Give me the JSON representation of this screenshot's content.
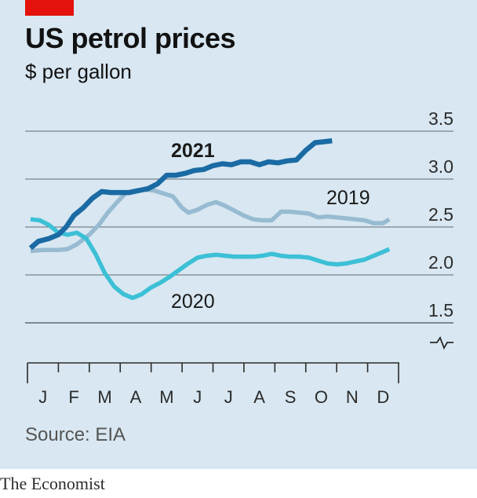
{
  "header": {
    "title": "US petrol prices",
    "subtitle": "$ per gallon"
  },
  "footer": {
    "source": "Source: EIA",
    "brand": "The Economist"
  },
  "colors": {
    "accent": "#e3120b",
    "bg": "#d8e7f1",
    "s2021": "#1a6aa3",
    "s2019": "#97bbd1",
    "s2020": "#3cc0d6"
  },
  "chart_data": {
    "type": "line",
    "title": "US petrol prices",
    "subtitle": "$ per gallon",
    "y_axis": {
      "position": "right",
      "ticks": [
        "3.5",
        "3.0",
        "2.5",
        "2.0",
        "1.5"
      ],
      "ylim": [
        1.5,
        3.5
      ],
      "broken": true
    },
    "x_axis": {
      "ticks": [
        "J",
        "F",
        "M",
        "A",
        "M",
        "J",
        "J",
        "A",
        "S",
        "O",
        "N",
        "D"
      ],
      "xlim": [
        0,
        12
      ]
    },
    "grid": true,
    "series": [
      {
        "name": "2021",
        "bold": true,
        "points": [
          [
            0.1,
            2.28
          ],
          [
            0.35,
            2.35
          ],
          [
            0.7,
            2.38
          ],
          [
            1.0,
            2.42
          ],
          [
            1.25,
            2.5
          ],
          [
            1.5,
            2.62
          ],
          [
            1.8,
            2.7
          ],
          [
            2.1,
            2.8
          ],
          [
            2.4,
            2.87
          ],
          [
            2.7,
            2.86
          ],
          [
            3.0,
            2.86
          ],
          [
            3.3,
            2.86
          ],
          [
            3.6,
            2.88
          ],
          [
            3.9,
            2.9
          ],
          [
            4.2,
            2.95
          ],
          [
            4.5,
            3.04
          ],
          [
            4.8,
            3.04
          ],
          [
            5.1,
            3.06
          ],
          [
            5.4,
            3.09
          ],
          [
            5.7,
            3.1
          ],
          [
            6.0,
            3.14
          ],
          [
            6.3,
            3.16
          ],
          [
            6.6,
            3.15
          ],
          [
            6.9,
            3.18
          ],
          [
            7.2,
            3.18
          ],
          [
            7.5,
            3.15
          ],
          [
            7.8,
            3.18
          ],
          [
            8.1,
            3.17
          ],
          [
            8.4,
            3.19
          ],
          [
            8.7,
            3.2
          ],
          [
            9.0,
            3.3
          ],
          [
            9.3,
            3.38
          ],
          [
            9.6,
            3.39
          ],
          [
            9.85,
            3.4
          ]
        ]
      },
      {
        "name": "2019",
        "points": [
          [
            0.1,
            2.25
          ],
          [
            0.5,
            2.26
          ],
          [
            1.0,
            2.26
          ],
          [
            1.3,
            2.27
          ],
          [
            1.6,
            2.32
          ],
          [
            2.0,
            2.42
          ],
          [
            2.3,
            2.52
          ],
          [
            2.6,
            2.65
          ],
          [
            2.9,
            2.76
          ],
          [
            3.2,
            2.86
          ],
          [
            3.5,
            2.88
          ],
          [
            3.8,
            2.89
          ],
          [
            4.1,
            2.88
          ],
          [
            4.4,
            2.85
          ],
          [
            4.7,
            2.82
          ],
          [
            5.0,
            2.7
          ],
          [
            5.2,
            2.65
          ],
          [
            5.5,
            2.68
          ],
          [
            5.8,
            2.73
          ],
          [
            6.1,
            2.76
          ],
          [
            6.4,
            2.72
          ],
          [
            6.7,
            2.67
          ],
          [
            7.0,
            2.62
          ],
          [
            7.3,
            2.58
          ],
          [
            7.6,
            2.57
          ],
          [
            7.9,
            2.57
          ],
          [
            8.2,
            2.66
          ],
          [
            8.5,
            2.66
          ],
          [
            8.8,
            2.65
          ],
          [
            9.1,
            2.64
          ],
          [
            9.4,
            2.6
          ],
          [
            9.7,
            2.61
          ],
          [
            10.0,
            2.6
          ],
          [
            10.3,
            2.59
          ],
          [
            10.6,
            2.58
          ],
          [
            10.9,
            2.57
          ],
          [
            11.2,
            2.54
          ],
          [
            11.5,
            2.54
          ],
          [
            11.7,
            2.58
          ]
        ]
      },
      {
        "name": "2020",
        "points": [
          [
            0.1,
            2.58
          ],
          [
            0.4,
            2.57
          ],
          [
            0.7,
            2.52
          ],
          [
            1.0,
            2.44
          ],
          [
            1.3,
            2.42
          ],
          [
            1.6,
            2.44
          ],
          [
            1.9,
            2.38
          ],
          [
            2.2,
            2.22
          ],
          [
            2.5,
            2.02
          ],
          [
            2.8,
            1.88
          ],
          [
            3.1,
            1.8
          ],
          [
            3.4,
            1.76
          ],
          [
            3.7,
            1.8
          ],
          [
            4.0,
            1.87
          ],
          [
            4.3,
            1.92
          ],
          [
            4.6,
            1.98
          ],
          [
            4.9,
            2.05
          ],
          [
            5.2,
            2.12
          ],
          [
            5.5,
            2.18
          ],
          [
            5.8,
            2.2
          ],
          [
            6.1,
            2.21
          ],
          [
            6.4,
            2.2
          ],
          [
            6.7,
            2.19
          ],
          [
            7.0,
            2.19
          ],
          [
            7.3,
            2.19
          ],
          [
            7.6,
            2.2
          ],
          [
            7.9,
            2.22
          ],
          [
            8.2,
            2.2
          ],
          [
            8.5,
            2.19
          ],
          [
            8.8,
            2.19
          ],
          [
            9.1,
            2.18
          ],
          [
            9.4,
            2.15
          ],
          [
            9.7,
            2.12
          ],
          [
            10.0,
            2.11
          ],
          [
            10.3,
            2.12
          ],
          [
            10.6,
            2.14
          ],
          [
            10.9,
            2.16
          ],
          [
            11.2,
            2.2
          ],
          [
            11.5,
            2.24
          ],
          [
            11.7,
            2.27
          ]
        ]
      }
    ],
    "labels": [
      {
        "text": "2021",
        "series": "2021"
      },
      {
        "text": "2019",
        "series": "2019"
      },
      {
        "text": "2020",
        "series": "2020"
      }
    ]
  }
}
